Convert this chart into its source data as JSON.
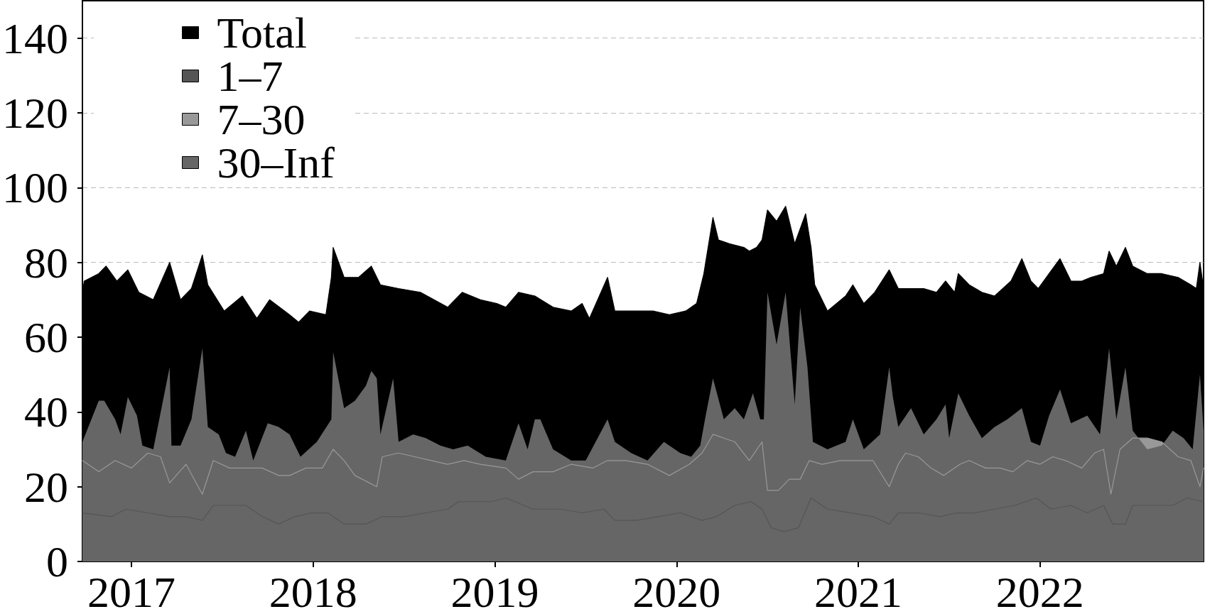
{
  "chart_data": {
    "type": "area",
    "xlim": [
      2016.73,
      2022.9
    ],
    "xticks": [
      2017,
      2018,
      2019,
      2020,
      2021,
      2022
    ],
    "ylim": [
      0,
      150
    ],
    "yticks": [
      0,
      20,
      40,
      60,
      80,
      100,
      120,
      140
    ],
    "grid": "y",
    "legend": "top left",
    "series": [
      {
        "name": "Total",
        "color": "#000000",
        "x": [
          2016.73,
          2016.74,
          2016.82,
          2016.86,
          2016.92,
          2016.98,
          2017.04,
          2017.12,
          2017.21,
          2017.27,
          2017.33,
          2017.39,
          2017.42,
          2017.51,
          2017.61,
          2017.69,
          2017.76,
          2017.87,
          2017.92,
          2017.98,
          2018.07,
          2018.1,
          2018.11,
          2018.17,
          2018.25,
          2018.32,
          2018.37,
          2018.47,
          2018.59,
          2018.74,
          2018.82,
          2018.92,
          2019.01,
          2019.06,
          2019.13,
          2019.22,
          2019.32,
          2019.42,
          2019.48,
          2019.52,
          2019.62,
          2019.66,
          2019.75,
          2019.87,
          2019.96,
          2020.05,
          2020.11,
          2020.15,
          2020.2,
          2020.23,
          2020.29,
          2020.37,
          2020.4,
          2020.44,
          2020.47,
          2020.5,
          2020.55,
          2020.6,
          2020.65,
          2020.71,
          2020.74,
          2020.76,
          2020.83,
          2020.93,
          2020.97,
          2021.03,
          2021.09,
          2021.17,
          2021.22,
          2021.28,
          2021.36,
          2021.43,
          2021.48,
          2021.53,
          2021.55,
          2021.61,
          2021.68,
          2021.75,
          2021.84,
          2021.9,
          2021.95,
          2021.99,
          2022.05,
          2022.11,
          2022.17,
          2022.23,
          2022.28,
          2022.35,
          2022.38,
          2022.42,
          2022.47,
          2022.51,
          2022.59,
          2022.67,
          2022.76,
          2022.83,
          2022.86,
          2022.88,
          2022.9
        ],
        "values": [
          72,
          75,
          77,
          79,
          75,
          78,
          72,
          70,
          80,
          70,
          73,
          82,
          74,
          67,
          71,
          65,
          70,
          66,
          64,
          67,
          66,
          76,
          84,
          76,
          76,
          79,
          74,
          73,
          72,
          68,
          72,
          70,
          69,
          68,
          72,
          71,
          68,
          67,
          69,
          65,
          76,
          67,
          67,
          67,
          66,
          67,
          69,
          77,
          92,
          86,
          85,
          84,
          83,
          84,
          86,
          94,
          91,
          95,
          85,
          93,
          84,
          74,
          67,
          71,
          74,
          69,
          72,
          78,
          73,
          73,
          73,
          72,
          75,
          72,
          77,
          74,
          72,
          71,
          75,
          81,
          75,
          73,
          77,
          81,
          75,
          75,
          76,
          77,
          83,
          79,
          84,
          79,
          77,
          77,
          76,
          74,
          73,
          80,
          73
        ]
      },
      {
        "name": "1–7",
        "color": "#555555",
        "x": [
          2016.73,
          2016.89,
          2016.97,
          2017.09,
          2017.21,
          2017.3,
          2017.39,
          2017.45,
          2017.52,
          2017.63,
          2017.72,
          2017.81,
          2017.9,
          2017.99,
          2018.08,
          2018.17,
          2018.29,
          2018.38,
          2018.5,
          2018.62,
          2018.74,
          2018.8,
          2018.89,
          2018.98,
          2019.06,
          2019.21,
          2019.36,
          2019.48,
          2019.6,
          2019.66,
          2019.78,
          2019.9,
          2020.02,
          2020.14,
          2020.22,
          2020.32,
          2020.41,
          2020.47,
          2020.52,
          2020.59,
          2020.67,
          2020.74,
          2020.83,
          2020.96,
          2021.08,
          2021.17,
          2021.22,
          2021.33,
          2021.45,
          2021.54,
          2021.64,
          2021.75,
          2021.86,
          2021.98,
          2022.06,
          2022.17,
          2022.26,
          2022.35,
          2022.4,
          2022.47,
          2022.51,
          2022.62,
          2022.73,
          2022.81,
          2022.9
        ],
        "values": [
          13,
          12,
          14,
          13,
          12,
          12,
          11,
          15,
          15,
          15,
          12,
          10,
          12,
          13,
          13,
          10,
          10,
          12,
          12,
          13,
          14,
          16,
          16,
          16,
          17,
          14,
          14,
          13,
          14,
          11,
          11,
          12,
          13,
          11,
          12,
          15,
          16,
          14,
          9,
          8,
          9,
          17,
          14,
          13,
          12,
          10,
          13,
          13,
          12,
          13,
          13,
          14,
          15,
          17,
          14,
          15,
          13,
          15,
          10,
          10,
          15,
          15,
          15,
          17,
          16
        ]
      },
      {
        "name": "7–30",
        "color": "#999999",
        "x": [
          2016.73,
          2016.82,
          2016.91,
          2017,
          2017.09,
          2017.16,
          2017.21,
          2017.3,
          2017.39,
          2017.45,
          2017.54,
          2017.63,
          2017.72,
          2017.81,
          2017.87,
          2017.96,
          2018.05,
          2018.11,
          2018.17,
          2018.23,
          2018.31,
          2018.35,
          2018.38,
          2018.47,
          2018.56,
          2018.65,
          2018.74,
          2018.83,
          2018.92,
          2019.06,
          2019.13,
          2019.21,
          2019.32,
          2019.42,
          2019.54,
          2019.62,
          2019.72,
          2019.84,
          2019.96,
          2020.07,
          2020.14,
          2020.2,
          2020.26,
          2020.32,
          2020.4,
          2020.47,
          2020.5,
          2020.56,
          2020.62,
          2020.68,
          2020.73,
          2020.8,
          2020.9,
          2020.99,
          2021.08,
          2021.17,
          2021.22,
          2021.26,
          2021.33,
          2021.4,
          2021.47,
          2021.56,
          2021.61,
          2021.7,
          2021.78,
          2021.85,
          2021.93,
          2022,
          2022.07,
          2022.14,
          2022.23,
          2022.3,
          2022.35,
          2022.39,
          2022.44,
          2022.51,
          2022.59,
          2022.67,
          2022.76,
          2022.83,
          2022.88,
          2022.9
        ],
        "values": [
          27,
          24,
          27,
          25,
          29,
          28,
          21,
          26,
          18,
          27,
          25,
          25,
          25,
          23,
          23,
          25,
          25,
          30,
          27,
          23,
          21,
          20,
          28,
          29,
          28,
          27,
          26,
          27,
          26,
          25,
          22,
          24,
          24,
          26,
          25,
          27,
          27,
          26,
          23,
          26,
          29,
          34,
          33,
          32,
          27,
          32,
          19,
          19,
          22,
          22,
          27,
          26,
          27,
          27,
          27,
          20,
          26,
          29,
          28,
          25,
          23,
          26,
          27,
          25,
          25,
          24,
          27,
          26,
          28,
          27,
          25,
          29,
          30,
          18,
          30,
          33,
          33,
          32,
          28,
          27,
          20,
          25
        ]
      },
      {
        "name": "30–Inf",
        "color": "#666666",
        "x": [
          2016.73,
          2016.82,
          2016.85,
          2016.91,
          2016.94,
          2016.98,
          2017.03,
          2017.06,
          2017.12,
          2017.21,
          2017.22,
          2017.27,
          2017.33,
          2017.39,
          2017.42,
          2017.48,
          2017.52,
          2017.57,
          2017.63,
          2017.67,
          2017.75,
          2017.81,
          2017.87,
          2017.93,
          2018.02,
          2018.1,
          2018.11,
          2018.17,
          2018.23,
          2018.29,
          2018.32,
          2018.35,
          2018.37,
          2018.44,
          2018.47,
          2018.55,
          2018.62,
          2018.7,
          2018.77,
          2018.85,
          2018.95,
          2019.06,
          2019.13,
          2019.18,
          2019.22,
          2019.25,
          2019.32,
          2019.42,
          2019.5,
          2019.62,
          2019.66,
          2019.75,
          2019.84,
          2019.93,
          2020.02,
          2020.08,
          2020.13,
          2020.16,
          2020.2,
          2020.26,
          2020.32,
          2020.37,
          2020.42,
          2020.46,
          2020.48,
          2020.5,
          2020.55,
          2020.6,
          2020.65,
          2020.68,
          2020.72,
          2020.75,
          2020.83,
          2020.93,
          2020.97,
          2021.03,
          2021.12,
          2021.17,
          2021.19,
          2021.22,
          2021.29,
          2021.36,
          2021.43,
          2021.48,
          2021.5,
          2021.55,
          2021.61,
          2021.68,
          2021.75,
          2021.82,
          2021.9,
          2021.95,
          2022,
          2022.05,
          2022.11,
          2022.17,
          2022.26,
          2022.33,
          2022.38,
          2022.42,
          2022.47,
          2022.51,
          2022.59,
          2022.67,
          2022.73,
          2022.79,
          2022.84,
          2022.88,
          2022.9
        ],
        "values": [
          32,
          43,
          43,
          38,
          34,
          44,
          39,
          31,
          30,
          52,
          31,
          31,
          38,
          57,
          36,
          34,
          29,
          28,
          35,
          27,
          37,
          36,
          34,
          28,
          32,
          38,
          56,
          41,
          43,
          47,
          51,
          49,
          34,
          49,
          32,
          34,
          33,
          31,
          30,
          31,
          28,
          27,
          37,
          30,
          38,
          38,
          30,
          27,
          27,
          38,
          32,
          29,
          27,
          32,
          29,
          28,
          31,
          39,
          49,
          38,
          41,
          38,
          45,
          38,
          38,
          72,
          58,
          72,
          42,
          68,
          52,
          32,
          30,
          32,
          38,
          30,
          34,
          52,
          44,
          36,
          41,
          34,
          38,
          42,
          33,
          45,
          39,
          33,
          36,
          38,
          41,
          32,
          31,
          39,
          46,
          37,
          39,
          34,
          57,
          38,
          52,
          35,
          30,
          31,
          35,
          33,
          30,
          50,
          35
        ]
      }
    ]
  }
}
